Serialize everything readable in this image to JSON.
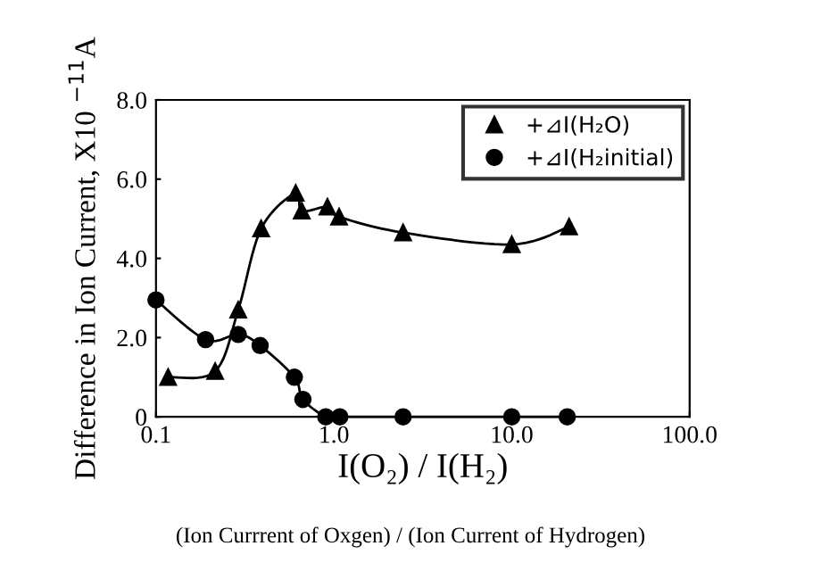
{
  "chart_data": {
    "type": "line",
    "xlabel": "I(O₂) / I(H₂)",
    "ylabel": "Difference in Ion Current, X10 $^{−11}$A",
    "annotations": [
      "(Ion Currrent of Oxgen) / (Ion Current of Hydrogen)"
    ],
    "log": "x",
    "xlim": [
      0.1,
      100
    ],
    "xticks": [
      {
        "value": 0.1,
        "label": "0.1"
      },
      {
        "value": 1,
        "label": "1.0"
      },
      {
        "value": 10,
        "label": "10.0"
      },
      {
        "value": 100,
        "label": "100.0"
      }
    ],
    "ylim": [
      0,
      8
    ],
    "yticks": [
      0,
      {
        "value": 2,
        "label": "2.0"
      },
      {
        "value": 4,
        "label": "4.0"
      },
      {
        "value": 6,
        "label": "6.0"
      },
      {
        "value": 8,
        "label": "8.0"
      }
    ],
    "grid": false,
    "legend": "top right",
    "series": [
      {
        "name": "+⊿I(H₂O)",
        "color": "#000000",
        "marker": "triangle",
        "x": [
          0.117,
          0.215,
          0.29,
          0.39,
          0.61,
          0.66,
          0.92,
          1.07,
          2.45,
          10,
          21
        ],
        "values": [
          1.0,
          1.15,
          2.7,
          4.75,
          5.65,
          5.2,
          5.3,
          5.05,
          4.65,
          4.35,
          4.8
        ]
      },
      {
        "name": "+⊿I(H₂initial)",
        "color": "#000000",
        "marker": "circle",
        "x": [
          0.1,
          0.19,
          0.29,
          0.385,
          0.6,
          0.67,
          0.9,
          1.08,
          2.45,
          10,
          20.5
        ],
        "values": [
          2.95,
          1.95,
          2.08,
          1.8,
          1.0,
          0.44,
          0,
          0,
          0,
          0,
          0
        ]
      }
    ]
  }
}
